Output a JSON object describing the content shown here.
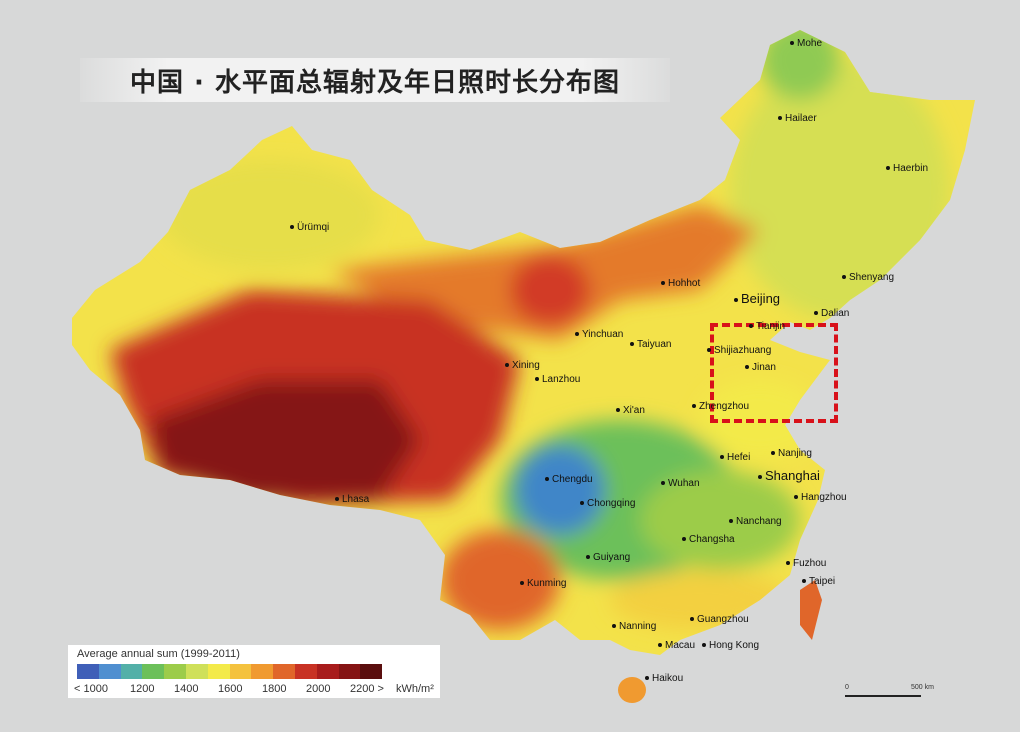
{
  "title": "中国 · 水平面总辐射及年日照时长分布图",
  "cities": [
    {
      "name": "Mohe"
    },
    {
      "name": "Hailaer"
    },
    {
      "name": "Haerbin"
    },
    {
      "name": "Ürümqi"
    },
    {
      "name": "Shenyang"
    },
    {
      "name": "Hohhot"
    },
    {
      "name": "Beijing"
    },
    {
      "name": "Dalian"
    },
    {
      "name": "Tianjin"
    },
    {
      "name": "Yinchuan"
    },
    {
      "name": "Taiyuan"
    },
    {
      "name": "Shijiazhuang"
    },
    {
      "name": "Xining"
    },
    {
      "name": "Jinan"
    },
    {
      "name": "Lanzhou"
    },
    {
      "name": "Xi'an"
    },
    {
      "name": "Zhengzhou"
    },
    {
      "name": "Lhasa"
    },
    {
      "name": "Nanjing"
    },
    {
      "name": "Hefei"
    },
    {
      "name": "Shanghai"
    },
    {
      "name": "Chengdu"
    },
    {
      "name": "Wuhan"
    },
    {
      "name": "Chongqing"
    },
    {
      "name": "Hangzhou"
    },
    {
      "name": "Nanchang"
    },
    {
      "name": "Changsha"
    },
    {
      "name": "Guiyang"
    },
    {
      "name": "Fuzhou"
    },
    {
      "name": "Taipei"
    },
    {
      "name": "Kunming"
    },
    {
      "name": "Guangzhou"
    },
    {
      "name": "Nanning"
    },
    {
      "name": "Macau"
    },
    {
      "name": "Hong Kong"
    },
    {
      "name": "Haikou"
    }
  ],
  "legend": {
    "title": "Average annual sum (1999-2011)",
    "ticks": [
      "< 1000",
      "1200",
      "1400",
      "1600",
      "1800",
      "2000",
      "2200 >"
    ],
    "unit": "kWh/m²",
    "colors": [
      "#3f5fb8",
      "#4f8fd0",
      "#53b0a8",
      "#6cc05a",
      "#9ccc4a",
      "#cfe05a",
      "#f3ea4a",
      "#f4c23e",
      "#f09a30",
      "#e0662a",
      "#c83224",
      "#a81c1c",
      "#851414",
      "#5a0e0e"
    ]
  },
  "scale_bar": {
    "start": "0",
    "end": "500 km"
  },
  "highlight_color": "#d8111a"
}
